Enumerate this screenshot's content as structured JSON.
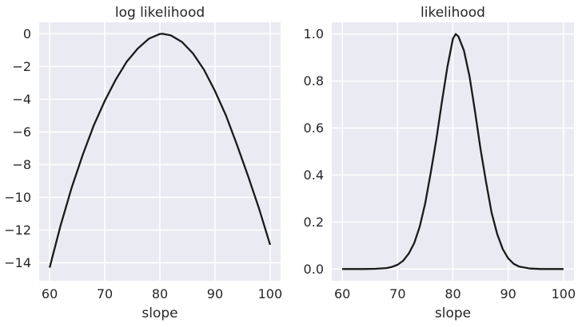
{
  "chart_data": [
    {
      "type": "line",
      "title": "log likelihood",
      "xlabel": "slope",
      "ylabel": "",
      "xlim": [
        58.1,
        101.9
      ],
      "ylim": [
        -15.1,
        0.7
      ],
      "grid": true,
      "xticks": [
        60,
        70,
        80,
        90,
        100
      ],
      "xtick_labels": [
        "60",
        "70",
        "80",
        "90",
        "100"
      ],
      "yticks": [
        -14,
        -12,
        -10,
        -8,
        -6,
        -4,
        -2,
        0
      ],
      "ytick_labels": [
        "−14",
        "−12",
        "−10",
        "−8",
        "−6",
        "−4",
        "−2",
        "0"
      ],
      "series": [
        {
          "color": "#1a1a1a",
          "x": [
            60,
            62,
            64,
            66,
            68,
            70,
            72,
            74,
            76,
            78,
            80,
            80.5,
            82,
            84,
            86,
            88,
            90,
            92,
            94,
            96,
            98,
            100
          ],
          "y": [
            -14.3,
            -11.7,
            -9.4,
            -7.4,
            -5.6,
            -4.1,
            -2.8,
            -1.7,
            -0.9,
            -0.3,
            -0.01,
            0.0,
            -0.1,
            -0.5,
            -1.2,
            -2.2,
            -3.5,
            -5.0,
            -6.8,
            -8.7,
            -10.7,
            -12.9
          ]
        }
      ]
    },
    {
      "type": "line",
      "title": "likelihood",
      "xlabel": "slope",
      "ylabel": "",
      "xlim": [
        58.1,
        101.9
      ],
      "ylim": [
        -0.05,
        1.05
      ],
      "grid": true,
      "xticks": [
        60,
        70,
        80,
        90,
        100
      ],
      "xtick_labels": [
        "60",
        "70",
        "80",
        "90",
        "100"
      ],
      "yticks": [
        0.0,
        0.2,
        0.4,
        0.6,
        0.8,
        1.0
      ],
      "ytick_labels": [
        "0.0",
        "0.2",
        "0.4",
        "0.6",
        "0.8",
        "1.0"
      ],
      "series": [
        {
          "color": "#1a1a1a",
          "x": [
            60,
            64,
            66,
            68,
            69,
            70,
            71,
            72,
            73,
            74,
            75,
            76,
            77,
            78,
            79,
            80,
            80.5,
            81,
            82,
            83,
            84,
            85,
            86,
            87,
            88,
            89,
            90,
            91,
            92,
            94,
            96,
            100
          ],
          "y": [
            0.0,
            0.0,
            0.001,
            0.004,
            0.009,
            0.018,
            0.035,
            0.065,
            0.11,
            0.18,
            0.28,
            0.41,
            0.55,
            0.71,
            0.86,
            0.98,
            1.0,
            0.99,
            0.93,
            0.82,
            0.67,
            0.51,
            0.37,
            0.24,
            0.15,
            0.085,
            0.045,
            0.022,
            0.01,
            0.002,
            0.0,
            0.0
          ]
        }
      ]
    }
  ]
}
